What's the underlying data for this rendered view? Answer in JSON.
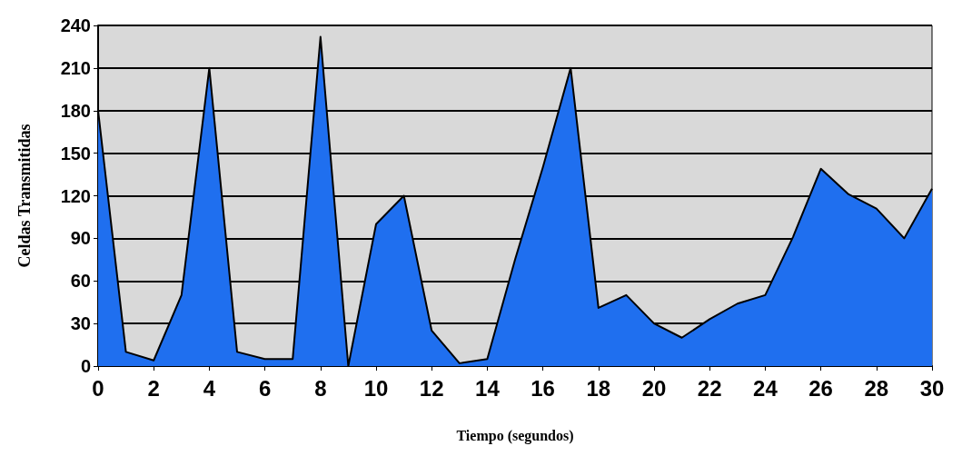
{
  "chart_data": {
    "type": "area",
    "xlabel": "Tiempo (segundos)",
    "ylabel": "Celdas Transmitidas",
    "x": [
      0,
      1,
      2,
      3,
      4,
      5,
      6,
      7,
      8,
      9,
      10,
      11,
      12,
      13,
      14,
      15,
      16,
      17,
      18,
      19,
      20,
      21,
      22,
      23,
      24,
      25,
      26,
      27,
      28,
      29,
      30
    ],
    "series": [
      {
        "color": "#1f6fef",
        "values": [
          180,
          10,
          4,
          50,
          210,
          10,
          5,
          5,
          232,
          0,
          100,
          120,
          25,
          2,
          5,
          75,
          140,
          210,
          41,
          50,
          30,
          20,
          33,
          44,
          50,
          91,
          139,
          121,
          111,
          90,
          125
        ]
      }
    ],
    "xlim": [
      0,
      30
    ],
    "xticks": [
      0,
      2,
      4,
      6,
      8,
      10,
      12,
      14,
      16,
      18,
      20,
      22,
      24,
      26,
      28,
      30
    ],
    "ylim": [
      0,
      240
    ],
    "yticks": [
      0,
      30,
      60,
      90,
      120,
      150,
      180,
      210,
      240
    ],
    "grid": "y"
  }
}
